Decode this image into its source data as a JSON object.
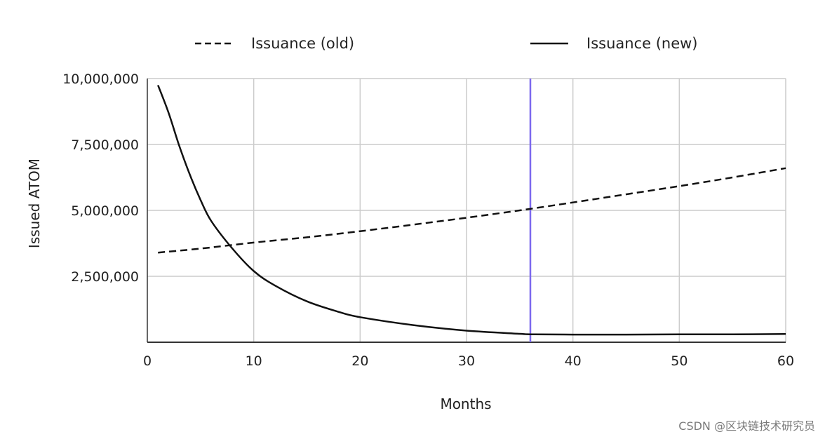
{
  "chart_data": {
    "type": "line",
    "title": "",
    "xlabel": "Months",
    "ylabel": "Issued ATOM",
    "xlim": [
      0,
      60
    ],
    "ylim": [
      0,
      10000000
    ],
    "x_ticks": [
      0,
      10,
      20,
      30,
      40,
      50,
      60
    ],
    "x_tick_labels": [
      "0",
      "10",
      "20",
      "30",
      "40",
      "50",
      "60"
    ],
    "y_ticks": [
      2500000,
      5000000,
      7500000,
      10000000
    ],
    "y_tick_labels": [
      "2,500,000",
      "5,000,000",
      "7,500,000",
      "10,000,000"
    ],
    "grid": true,
    "legend_position": "top",
    "series": [
      {
        "name": "Issuance (old)",
        "style": "dashed",
        "color": "#111111",
        "x": [
          1,
          5,
          10,
          15,
          20,
          25,
          30,
          35,
          40,
          45,
          50,
          55,
          60
        ],
        "y": [
          3400000,
          3550000,
          3780000,
          3980000,
          4210000,
          4460000,
          4720000,
          5000000,
          5300000,
          5610000,
          5920000,
          6250000,
          6600000
        ]
      },
      {
        "name": "Issuance (new)",
        "style": "solid",
        "color": "#111111",
        "x": [
          1,
          2,
          3,
          4,
          5,
          6,
          8,
          10,
          12,
          15,
          18,
          20,
          25,
          30,
          35,
          36,
          40,
          45,
          50,
          55,
          60
        ],
        "y": [
          9750000,
          8700000,
          7450000,
          6350000,
          5400000,
          4600000,
          3550000,
          2700000,
          2150000,
          1550000,
          1150000,
          950000,
          650000,
          440000,
          320000,
          300000,
          290000,
          290000,
          300000,
          300000,
          310000
        ]
      }
    ],
    "marker_line": {
      "x": 36,
      "color": "#7b68ee"
    }
  },
  "watermark": "CSDN @区块链技术研究员"
}
